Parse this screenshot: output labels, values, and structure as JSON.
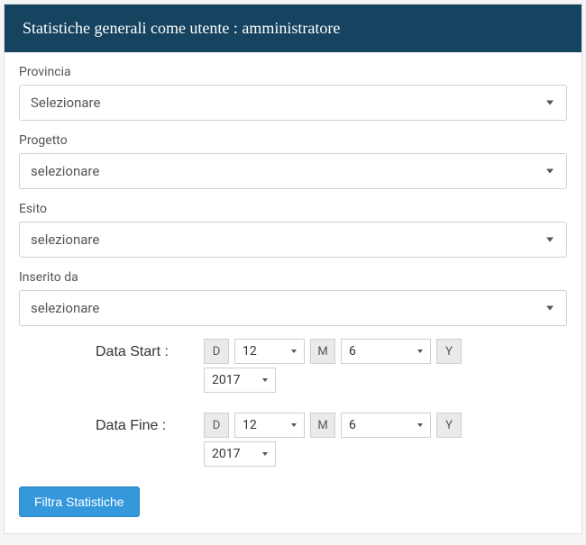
{
  "header": {
    "title": "Statistiche generali come utente : amministratore"
  },
  "fields": {
    "provincia": {
      "label": "Provincia",
      "value": "Selezionare"
    },
    "progetto": {
      "label": "Progetto",
      "value": "selezionare"
    },
    "esito": {
      "label": "Esito",
      "value": "selezionare"
    },
    "inserito_da": {
      "label": "Inserito da",
      "value": "selezionare"
    }
  },
  "date_labels": {
    "d": "D",
    "m": "M",
    "y": "Y"
  },
  "date_start": {
    "label": "Data Start :",
    "day": "12",
    "month": "6",
    "year": "2017"
  },
  "date_fine": {
    "label": "Data Fine :",
    "day": "12",
    "month": "6",
    "year": "2017"
  },
  "buttons": {
    "filter": "Filtra Statistiche"
  },
  "colors": {
    "header_bg": "#154360",
    "header_text": "#ffffff",
    "panel_bg": "#ffffff",
    "border": "#d0d0d0",
    "btn_bg": "#3498db",
    "btn_text": "#ffffff",
    "text": "#555555"
  }
}
